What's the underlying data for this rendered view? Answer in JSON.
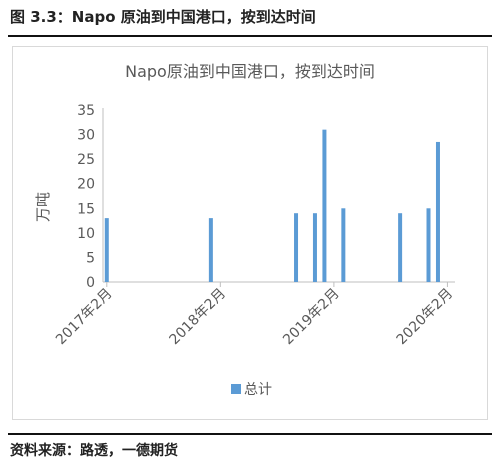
{
  "figure_title": "图 3.3：Napo 原油到中国港口，按到达时间",
  "source_note": "资料来源：路透，一德期货",
  "chart_data": {
    "type": "bar",
    "title": "Napo原油到中国港口，按到达时间",
    "ylabel": "万吨",
    "xlabel": "",
    "ylim": [
      0,
      35
    ],
    "yticks": [
      0,
      5,
      10,
      15,
      20,
      25,
      30,
      35
    ],
    "x_tick_labels": [
      "2017年2月",
      "2018年2月",
      "2019年2月",
      "2020年2月"
    ],
    "grid": false,
    "legend_position": "bottom",
    "bar_color": "#5b9bd5",
    "series": [
      {
        "name": "总计",
        "data": [
          {
            "x": "2017-02",
            "y": 13
          },
          {
            "x": "2018-01",
            "y": 13
          },
          {
            "x": "2018-10",
            "y": 14
          },
          {
            "x": "2018-12",
            "y": 14
          },
          {
            "x": "2019-01",
            "y": 31
          },
          {
            "x": "2019-03",
            "y": 15
          },
          {
            "x": "2019-09",
            "y": 14
          },
          {
            "x": "2019-12",
            "y": 15
          },
          {
            "x": "2020-01",
            "y": 28.5
          }
        ]
      }
    ]
  }
}
